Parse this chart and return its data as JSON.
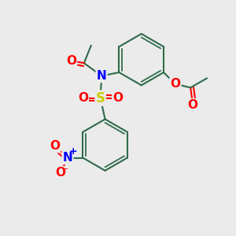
{
  "bg_color": "#ebebeb",
  "bond_color": "#2d6b4a",
  "bond_width": 1.5,
  "N_color": "#0000ff",
  "O_color": "#ff0000",
  "S_color": "#cccc00",
  "text_fontsize": 10,
  "figsize": [
    3.0,
    3.0
  ],
  "dpi": 100,
  "xlim": [
    0,
    10
  ],
  "ylim": [
    0,
    10
  ]
}
